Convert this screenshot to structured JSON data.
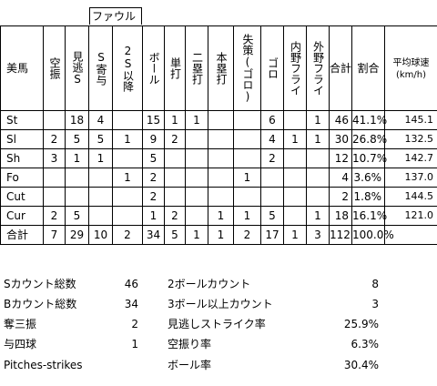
{
  "foul_label": "ファウル",
  "headers": {
    "corner": "美馬",
    "cols": [
      "空振",
      "見逃S",
      "S寄与",
      "2S以降",
      "ボール",
      "単打",
      "二塁打",
      "本塁打",
      "失策(ゴロ)",
      "ゴロ",
      "内野フライ",
      "外野フライ",
      "合計",
      "割合"
    ],
    "speed": "平均球速(km/h)"
  },
  "rows": [
    {
      "pitch": "St",
      "cells": [
        "",
        "18",
        "4",
        "",
        "15",
        "1",
        "1",
        "",
        "",
        "6",
        "",
        "1",
        "46",
        "41.1%"
      ],
      "speed": "145.1"
    },
    {
      "pitch": "Sl",
      "cells": [
        "2",
        "5",
        "5",
        "1",
        "9",
        "2",
        "",
        "",
        "",
        "4",
        "1",
        "1",
        "30",
        "26.8%"
      ],
      "speed": "132.5"
    },
    {
      "pitch": "Sh",
      "cells": [
        "3",
        "1",
        "1",
        "",
        "5",
        "",
        "",
        "",
        "",
        "2",
        "",
        "",
        "12",
        "10.7%"
      ],
      "speed": "142.7"
    },
    {
      "pitch": "Fo",
      "cells": [
        "",
        "",
        "",
        "1",
        "2",
        "",
        "",
        "",
        "1",
        "",
        "",
        "",
        "4",
        "3.6%"
      ],
      "speed": "137.0"
    },
    {
      "pitch": "Cut",
      "cells": [
        "",
        "",
        "",
        "",
        "2",
        "",
        "",
        "",
        "",
        "",
        "",
        "",
        "2",
        "1.8%"
      ],
      "speed": "144.5"
    },
    {
      "pitch": "Cur",
      "cells": [
        "2",
        "5",
        "",
        "",
        "1",
        "2",
        "",
        "1",
        "1",
        "5",
        "",
        "1",
        "18",
        "16.1%"
      ],
      "speed": "121.0"
    },
    {
      "pitch": "合計",
      "cells": [
        "7",
        "29",
        "10",
        "2",
        "34",
        "5",
        "1",
        "1",
        "2",
        "17",
        "1",
        "3",
        "112",
        "100.0%"
      ],
      "speed": ""
    }
  ],
  "summary": {
    "left": [
      {
        "label": "Sカウント総数",
        "value": "46"
      },
      {
        "label": "Bカウント総数",
        "value": "34"
      },
      {
        "label": "奪三振",
        "value": "2"
      },
      {
        "label": "与四球",
        "value": "1"
      },
      {
        "label": "Pitches-strikes",
        "value": ""
      }
    ],
    "right": [
      {
        "label": "2ボールカウント",
        "value": "8"
      },
      {
        "label": "3ボール以上カウント",
        "value": "3"
      },
      {
        "label": "見逃しストライク率",
        "value": "25.9%"
      },
      {
        "label": "空振り率",
        "value": "6.3%"
      },
      {
        "label": "ボール率",
        "value": "30.4%"
      }
    ]
  }
}
